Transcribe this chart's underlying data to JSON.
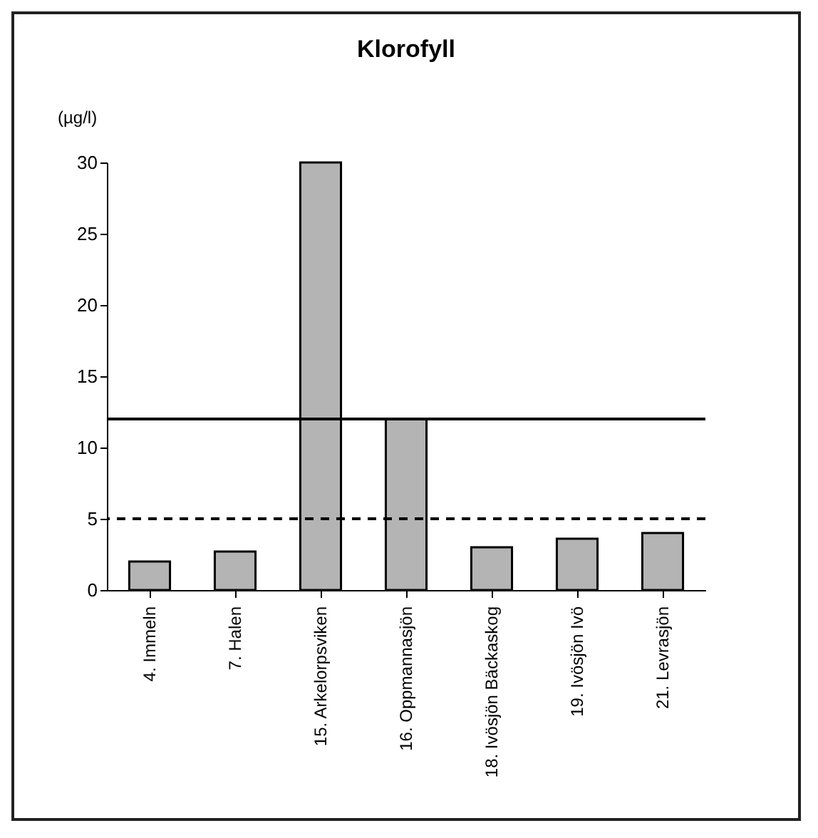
{
  "chart_data": {
    "type": "bar",
    "title": "Klorofyll",
    "ylabel": "(µg/l)",
    "categories": [
      "4. Immeln",
      "7. Halen",
      "15. Arkelorpsviken",
      "16. Oppmannasjön",
      "18. Ivösjön Bäckaskog",
      "19. Ivösjön Ivö",
      "21. Levrasjön"
    ],
    "values": [
      2.0,
      2.7,
      30,
      12,
      3.0,
      3.6,
      4.0
    ],
    "color": "#b4b4b4",
    "ylim": [
      0,
      30
    ],
    "yticks": [
      0,
      5,
      10,
      15,
      20,
      25,
      30
    ],
    "ref_lines": [
      {
        "axis": "y",
        "value": 12,
        "color": "#000000",
        "line_style": "solid"
      },
      {
        "axis": "y",
        "value": 5,
        "color": "#000000",
        "line_style": "dashed"
      }
    ],
    "grid": false
  }
}
